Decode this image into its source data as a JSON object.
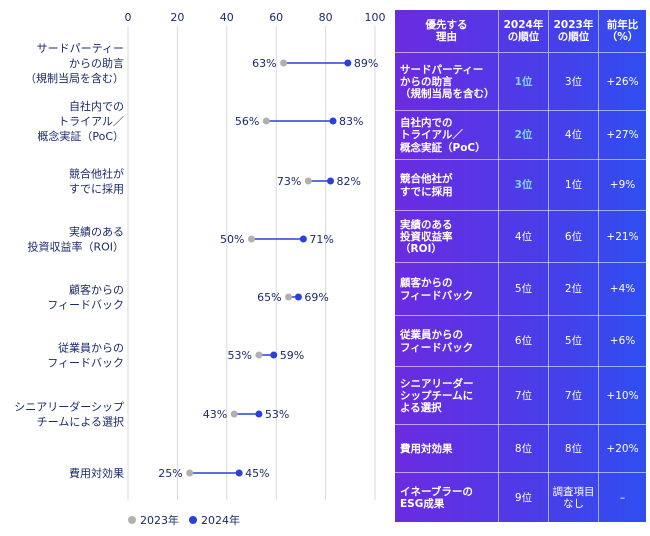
{
  "chart_data": {
    "type": "dumbbell",
    "xlim": [
      0,
      100
    ],
    "xticks": [
      0,
      20,
      40,
      60,
      80,
      100
    ],
    "categories": [
      [
        "サードパーティー",
        "からの助言",
        "（規制当局を含む）"
      ],
      [
        "自社内での",
        "トライアル／",
        "概念実証（PoC）"
      ],
      [
        "競合他社が",
        "すでに採用"
      ],
      [
        "実績のある",
        "投資収益率（ROI）"
      ],
      [
        "顧客からの",
        "フィードバック"
      ],
      [
        "従業員からの",
        "フィードバック"
      ],
      [
        "シニアリーダーシップ",
        "チームによる選択"
      ],
      [
        "費用対効果"
      ]
    ],
    "series": [
      {
        "name": "2023年",
        "color": "#b0b0b0",
        "values": [
          63,
          56,
          73,
          50,
          65,
          53,
          43,
          25
        ]
      },
      {
        "name": "2024年",
        "color": "#2941d8",
        "values": [
          89,
          83,
          82,
          71,
          69,
          59,
          53,
          45
        ]
      }
    ],
    "grid": true,
    "legend": "bottom-left"
  },
  "legend": [
    {
      "label": "2023年",
      "color": "#b0b0b0"
    },
    {
      "label": "2024年",
      "color": "#2941d8"
    }
  ],
  "table": {
    "headers": {
      "reason": [
        "優先する",
        "理由"
      ],
      "rank2024": [
        "2024年",
        "の順位"
      ],
      "rank2023": [
        "2023年",
        "の順位"
      ],
      "yoy": [
        "前年比",
        "（%）"
      ]
    },
    "rows": [
      {
        "reason": [
          "サードパーティー",
          "からの助言",
          "（規制当局を含む）"
        ],
        "rank2024": "1位",
        "rank2023": "3位",
        "yoy": "+26%",
        "highlight": true
      },
      {
        "reason": [
          "自社内での",
          "トライアル／",
          "概念実証（PoC）"
        ],
        "rank2024": "2位",
        "rank2023": "4位",
        "yoy": "+27%",
        "highlight": true
      },
      {
        "reason": [
          "競合他社が",
          "すでに採用"
        ],
        "rank2024": "3位",
        "rank2023": "1位",
        "yoy": "+9%",
        "highlight": true
      },
      {
        "reason": [
          "実績のある",
          "投資収益率",
          "（ROI）"
        ],
        "rank2024": "4位",
        "rank2023": "6位",
        "yoy": "+21%",
        "highlight": false
      },
      {
        "reason": [
          "顧客からの",
          "フィードバック"
        ],
        "rank2024": "5位",
        "rank2023": "2位",
        "yoy": "+4%",
        "highlight": false
      },
      {
        "reason": [
          "従業員からの",
          "フィードバック"
        ],
        "rank2024": "6位",
        "rank2023": "5位",
        "yoy": "+6%",
        "highlight": false
      },
      {
        "reason": [
          "シニアリーダー",
          "シップチームに",
          "よる選択"
        ],
        "rank2024": "7位",
        "rank2023": "7位",
        "yoy": "+10%",
        "highlight": false
      },
      {
        "reason": [
          "費用対効果"
        ],
        "rank2024": "8位",
        "rank2023": "8位",
        "yoy": "+20%",
        "highlight": false
      },
      {
        "reason": [
          "イネーブラーの",
          "ESG成果"
        ],
        "rank2024": "9位",
        "rank2023": [
          "調査項目",
          "なし"
        ],
        "yoy": "–",
        "highlight": false
      }
    ]
  }
}
